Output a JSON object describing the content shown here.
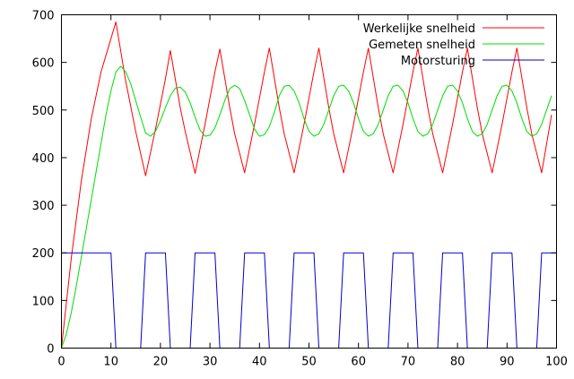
{
  "chart_data": {
    "type": "line",
    "title": "",
    "xlabel": "",
    "ylabel": "",
    "xlim": [
      0,
      100
    ],
    "ylim": [
      0,
      700
    ],
    "xticks": [
      0,
      10,
      20,
      30,
      40,
      50,
      60,
      70,
      80,
      90,
      100
    ],
    "yticks": [
      0,
      100,
      200,
      300,
      400,
      500,
      600,
      700
    ],
    "grid": false,
    "legend_position": "top-right",
    "series": [
      {
        "name": "Werkelijke snelheid",
        "color": "#ff0000",
        "x": [
          0,
          2,
          4,
          6,
          8,
          10,
          11,
          13,
          15,
          17,
          19,
          21,
          22,
          24,
          25,
          27,
          29,
          31,
          32,
          34,
          35,
          37,
          39,
          41,
          42,
          44,
          45,
          47,
          49,
          51,
          52,
          54,
          55,
          57,
          59,
          61,
          62,
          64,
          65,
          67,
          69,
          71,
          72,
          74,
          75,
          77,
          79,
          81,
          82,
          84,
          85,
          87,
          89,
          91,
          92,
          94,
          95,
          97,
          99
        ],
        "y": [
          0,
          190,
          350,
          480,
          580,
          650,
          685,
          560,
          455,
          362,
          460,
          565,
          625,
          505,
          455,
          367,
          470,
          580,
          628,
          505,
          450,
          368,
          470,
          580,
          630,
          505,
          450,
          368,
          470,
          580,
          630,
          505,
          450,
          368,
          470,
          580,
          630,
          505,
          450,
          368,
          470,
          580,
          630,
          505,
          450,
          368,
          470,
          580,
          630,
          505,
          450,
          368,
          470,
          580,
          630,
          505,
          450,
          368,
          490
        ]
      },
      {
        "name": "Gemeten snelheid",
        "color": "#00dd00",
        "x": [
          0,
          1,
          2,
          3,
          4,
          5,
          6,
          7,
          8,
          9,
          10,
          11,
          12,
          13,
          14,
          15,
          16,
          17,
          18,
          19,
          20,
          21,
          22,
          23,
          24,
          25,
          26,
          27,
          28,
          29,
          30,
          31,
          32,
          33,
          34,
          35,
          36,
          37,
          38,
          39,
          40,
          41,
          42,
          43,
          44,
          45,
          46,
          47,
          48,
          49,
          50,
          51,
          52,
          53,
          54,
          55,
          56,
          57,
          58,
          59,
          60,
          61,
          62,
          63,
          64,
          65,
          66,
          67,
          68,
          69,
          70,
          71,
          72,
          73,
          74,
          75,
          76,
          77,
          78,
          79,
          80,
          81,
          82,
          83,
          84,
          85,
          86,
          87,
          88,
          89,
          90,
          91,
          92,
          93,
          94,
          95,
          96,
          97,
          98,
          99
        ],
        "y": [
          0,
          30,
          75,
          130,
          190,
          250,
          310,
          370,
          430,
          490,
          540,
          580,
          592,
          580,
          555,
          520,
          485,
          452,
          445,
          455,
          478,
          505,
          530,
          546,
          548,
          538,
          515,
          485,
          458,
          445,
          447,
          462,
          490,
          520,
          545,
          552,
          545,
          520,
          490,
          460,
          445,
          448,
          465,
          495,
          530,
          550,
          552,
          540,
          515,
          482,
          455,
          445,
          450,
          470,
          500,
          530,
          550,
          552,
          540,
          515,
          482,
          455,
          445,
          450,
          470,
          500,
          530,
          550,
          552,
          540,
          515,
          482,
          455,
          445,
          450,
          470,
          500,
          530,
          550,
          552,
          540,
          515,
          482,
          455,
          445,
          450,
          470,
          500,
          530,
          550,
          552,
          540,
          515,
          482,
          455,
          445,
          450,
          470,
          500,
          530
        ]
      },
      {
        "name": "Motorsturing",
        "color": "#0000cc",
        "x": [
          0,
          10,
          11,
          16,
          17,
          21,
          22,
          26,
          27,
          31,
          32,
          36,
          37,
          41,
          42,
          46,
          47,
          51,
          52,
          56,
          57,
          61,
          62,
          66,
          67,
          71,
          72,
          76,
          77,
          81,
          82,
          86,
          87,
          91,
          92,
          96,
          97,
          100
        ],
        "y": [
          200,
          200,
          0,
          0,
          200,
          200,
          0,
          0,
          200,
          200,
          0,
          0,
          200,
          200,
          0,
          0,
          200,
          200,
          0,
          0,
          200,
          200,
          0,
          0,
          200,
          200,
          0,
          0,
          200,
          200,
          0,
          0,
          200,
          200,
          0,
          0,
          200,
          200
        ]
      }
    ]
  }
}
